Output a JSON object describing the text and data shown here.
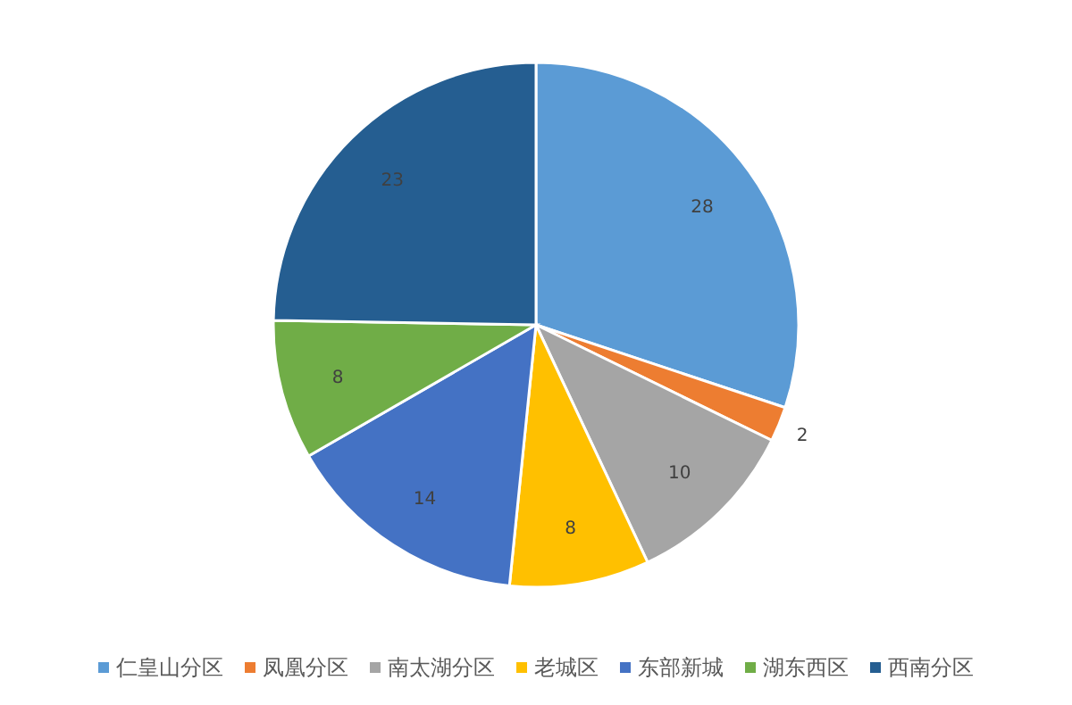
{
  "chart_data": {
    "type": "pie",
    "categories": [
      "仁皇山分区",
      "凤凰分区",
      "南太湖分区",
      "老城区",
      "东部新城",
      "湖东西区",
      "西南分区"
    ],
    "values": [
      28,
      2,
      10,
      8,
      14,
      8,
      23
    ],
    "colors": [
      "#5b9bd5",
      "#ed7d31",
      "#a5a5a5",
      "#ffc000",
      "#4472c4",
      "#70ad47",
      "#255e91"
    ],
    "data_labels": true,
    "legend": "bottom"
  }
}
